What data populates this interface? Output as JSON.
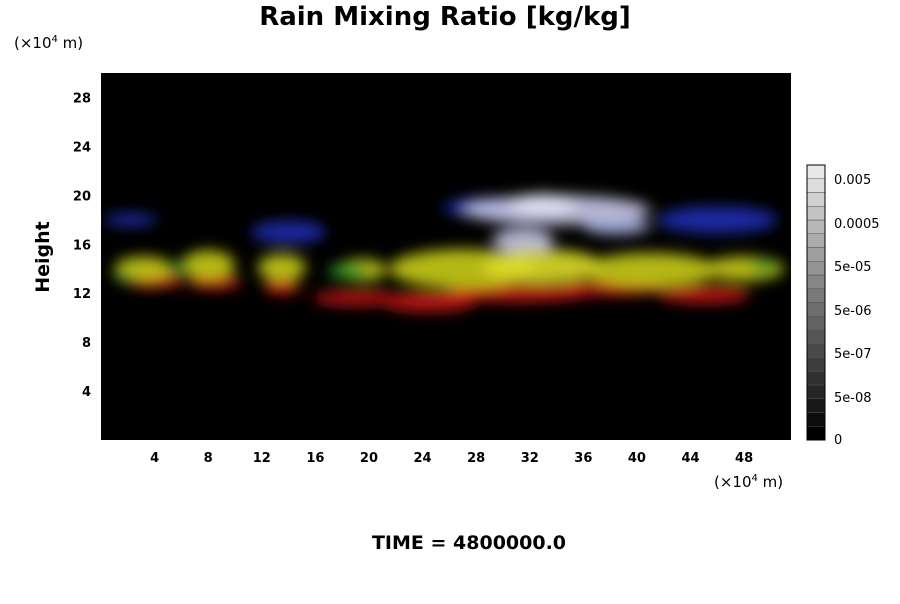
{
  "chart_data": {
    "type": "heatmap",
    "title": "Rain Mixing Ratio [kg/kg]",
    "ylabel": "Height",
    "x_unit": {
      "prefix": "(×10",
      "exp": "4",
      "suffix": " m)"
    },
    "y_unit": {
      "prefix": "(×10",
      "exp": "4",
      "suffix": " m)"
    },
    "xlim": [
      0,
      51.5
    ],
    "ylim": [
      0,
      30
    ],
    "x_ticks": [
      4,
      8,
      12,
      16,
      20,
      24,
      28,
      32,
      36,
      40,
      44,
      48
    ],
    "y_ticks": [
      4,
      8,
      12,
      16,
      20,
      24,
      28
    ],
    "x_tick_labels": [
      "4",
      "8",
      "12",
      "16",
      "20",
      "24",
      "28",
      "32",
      "36",
      "40",
      "44",
      "48"
    ],
    "y_tick_labels": [
      "4",
      "8",
      "12",
      "16",
      "20",
      "24",
      "28"
    ],
    "background_color": "#000000",
    "colorbar": {
      "labels": [
        "0.005",
        "0.0005",
        "5e-05",
        "5e-06",
        "5e-07",
        "5e-08",
        "0"
      ],
      "levels": 20
    },
    "features": [
      {
        "color": "#cc1a14",
        "cx": 4,
        "cy": 13.0,
        "rx": 2.2,
        "ry": 0.6
      },
      {
        "color": "#cc1a14",
        "cx": 8.5,
        "cy": 12.9,
        "rx": 2.0,
        "ry": 0.6
      },
      {
        "color": "#cc1a14",
        "cx": 13.5,
        "cy": 12.5,
        "rx": 1.4,
        "ry": 0.6
      },
      {
        "color": "#cc1a14",
        "cx": 19,
        "cy": 11.6,
        "rx": 3.2,
        "ry": 0.6
      },
      {
        "color": "#cc1a14",
        "cx": 24.5,
        "cy": 11.3,
        "rx": 3.5,
        "ry": 0.8
      },
      {
        "color": "#cc1a14",
        "cx": 31,
        "cy": 12.0,
        "rx": 5.5,
        "ry": 0.7
      },
      {
        "color": "#cc1a14",
        "cx": 38,
        "cy": 12.4,
        "rx": 4.0,
        "ry": 0.6
      },
      {
        "color": "#cc1a14",
        "cx": 45,
        "cy": 11.9,
        "rx": 3.5,
        "ry": 0.7
      },
      {
        "color": "#1e2fb4",
        "cx": 2.2,
        "cy": 18.0,
        "rx": 2.0,
        "ry": 0.5
      },
      {
        "color": "#1e2fb4",
        "cx": 14,
        "cy": 17.0,
        "rx": 2.8,
        "ry": 0.9
      },
      {
        "color": "#1e2fb4",
        "cx": 29,
        "cy": 19.0,
        "rx": 3.5,
        "ry": 0.8
      },
      {
        "color": "#1e2fb4",
        "cx": 46,
        "cy": 18.0,
        "rx": 4.5,
        "ry": 1.1
      },
      {
        "color": "#c9c9e8",
        "cx": 34,
        "cy": 18.8,
        "rx": 7.0,
        "ry": 1.2
      },
      {
        "color": "#e6e6f7",
        "cx": 33,
        "cy": 19.3,
        "rx": 2.5,
        "ry": 0.8
      },
      {
        "color": "#c9c9e8",
        "cx": 31.5,
        "cy": 16.3,
        "rx": 2.3,
        "ry": 1.0
      },
      {
        "color": "#aab4e0",
        "cx": 38.5,
        "cy": 17.5,
        "rx": 2.5,
        "ry": 0.7
      },
      {
        "color": "#c8cc1a",
        "cx": 3.2,
        "cy": 14.0,
        "rx": 2.2,
        "ry": 1.0
      },
      {
        "color": "#c8cc1a",
        "cx": 8,
        "cy": 14.3,
        "rx": 2.0,
        "ry": 1.2
      },
      {
        "color": "#c8cc1a",
        "cx": 13.5,
        "cy": 14.1,
        "rx": 1.8,
        "ry": 1.1
      },
      {
        "color": "#c8cc1a",
        "cx": 19.5,
        "cy": 13.9,
        "rx": 1.8,
        "ry": 0.9
      },
      {
        "color": "#c8cc1a",
        "cx": 27,
        "cy": 14.0,
        "rx": 5.5,
        "ry": 1.6
      },
      {
        "color": "#dcdc2a",
        "cx": 33,
        "cy": 14.2,
        "rx": 4.5,
        "ry": 1.4
      },
      {
        "color": "#c8cc1a",
        "cx": 41,
        "cy": 13.9,
        "rx": 5.0,
        "ry": 1.4
      },
      {
        "color": "#c8cc1a",
        "cx": 48,
        "cy": 14.0,
        "rx": 3.0,
        "ry": 1.0
      },
      {
        "color": "#2a9a2a",
        "cx": 1.8,
        "cy": 13.3,
        "rx": 0.8,
        "ry": 0.4
      },
      {
        "color": "#2a9a2a",
        "cx": 5.8,
        "cy": 14.0,
        "rx": 0.8,
        "ry": 0.5
      },
      {
        "color": "#2a9a2a",
        "cx": 18.5,
        "cy": 13.8,
        "rx": 1.6,
        "ry": 0.6
      },
      {
        "color": "#2a9a2a",
        "cx": 49.5,
        "cy": 14.2,
        "rx": 1.0,
        "ry": 0.5
      }
    ]
  },
  "footer": {
    "time_label": "TIME = 4800000.0"
  }
}
